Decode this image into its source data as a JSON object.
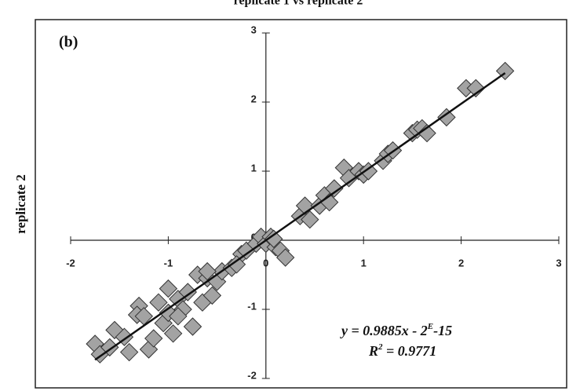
{
  "chart_data": {
    "type": "scatter",
    "title": "replicate 1 vs replicate 2",
    "ylabel": "replicate 2",
    "panel_label": "(b)",
    "equation": [
      "y = 0.9885x - 2",
      "E",
      "-15"
    ],
    "r_squared": [
      "R",
      "2",
      " = 0.9771"
    ],
    "color": "#a3a3a3",
    "xlim": [
      -2,
      3
    ],
    "ylim": [
      -2,
      3
    ],
    "xticks": [
      -2,
      -1,
      0,
      1,
      2,
      3
    ],
    "yticks": [
      -2,
      -1,
      0,
      1,
      2,
      3
    ],
    "x": [
      -1.75,
      -1.7,
      -1.6,
      -1.55,
      -1.45,
      -1.4,
      -1.3,
      -1.32,
      -1.2,
      -1.15,
      -1.1,
      -1.05,
      -1.0,
      -1.0,
      -0.95,
      -0.9,
      -0.85,
      -0.8,
      -0.75,
      -0.7,
      -0.65,
      -0.6,
      -0.55,
      -0.5,
      -0.45,
      -0.35,
      -0.25,
      -0.2,
      -0.1,
      -0.05,
      0,
      0.05,
      0.1,
      0.15,
      0.2,
      0.08,
      0.35,
      0.4,
      0.45,
      0.55,
      0.6,
      0.7,
      0.8,
      0.85,
      0.95,
      1.0,
      1.2,
      1.25,
      1.3,
      1.5,
      1.55,
      1.6,
      1.65,
      1.85,
      2.05,
      2.15,
      2.45,
      -0.6,
      -0.9,
      -1.25,
      -0.3,
      1.05,
      0.65
    ],
    "values": [
      -1.5,
      -1.65,
      -1.55,
      -1.3,
      -1.4,
      -1.62,
      -0.95,
      -1.08,
      -1.58,
      -1.42,
      -0.9,
      -1.2,
      -1.05,
      -0.7,
      -1.35,
      -0.85,
      -1.0,
      -0.75,
      -1.25,
      -0.5,
      -0.9,
      -0.55,
      -0.8,
      -0.6,
      -0.45,
      -0.4,
      -0.2,
      -0.15,
      -0.05,
      0.05,
      -0.05,
      0.05,
      -0.1,
      -0.15,
      -0.25,
      0.02,
      0.35,
      0.5,
      0.3,
      0.5,
      0.65,
      0.75,
      1.05,
      0.9,
      1.0,
      0.95,
      1.15,
      1.25,
      1.3,
      1.55,
      1.6,
      1.62,
      1.55,
      1.78,
      2.2,
      2.2,
      2.45,
      -0.45,
      -1.1,
      -1.1,
      -0.35,
      1.0,
      0.55
    ],
    "trendline": {
      "x": [
        -1.75,
        2.45
      ],
      "y": [
        -1.73,
        2.42
      ]
    }
  }
}
